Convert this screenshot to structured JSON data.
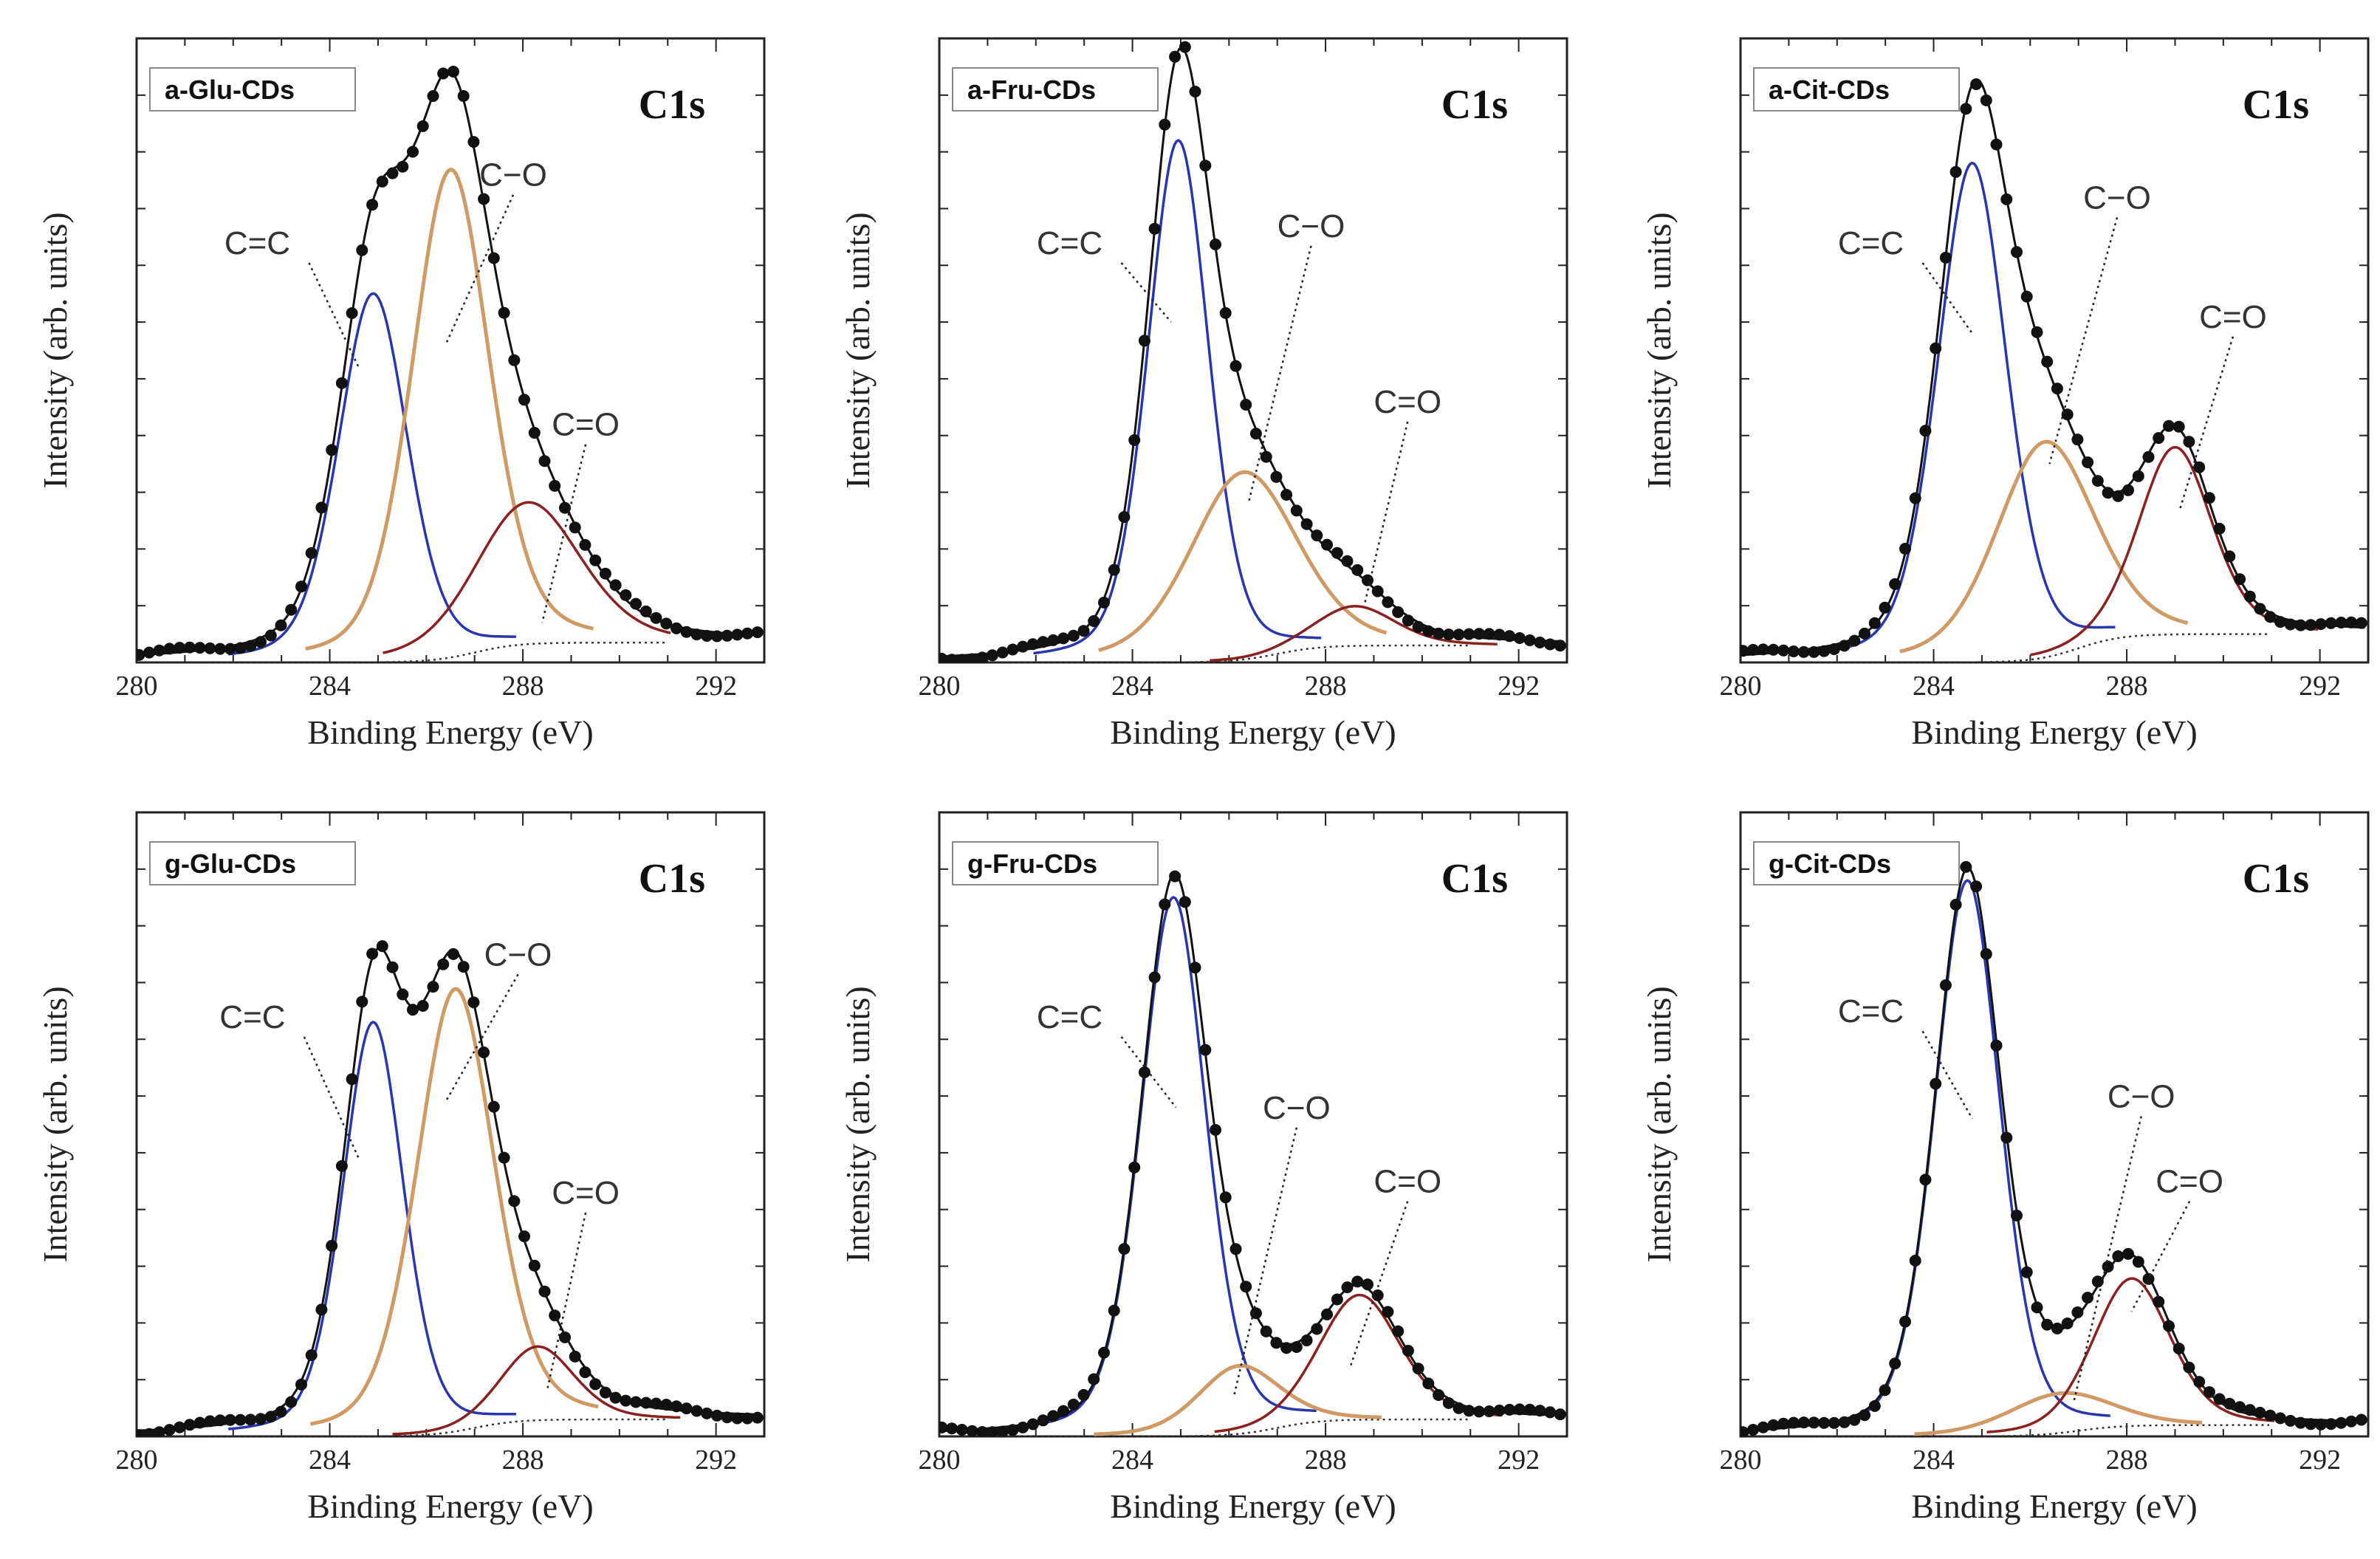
{
  "figure": {
    "xlabel": "Binding Energy (eV)",
    "ylabel": "Intensity (arb. units)"
  },
  "colors": {
    "c_eq_c": "#2b35b0",
    "c_o": "#d09a64",
    "c_eq_o": "#8b2020",
    "envelope": "#111111",
    "background": "#333333"
  },
  "chart_data": [
    {
      "type": "line",
      "sample": "a-Glu-CDs",
      "title": "C1s",
      "xlabel": "Binding Energy (eV)",
      "ylabel": "Intensity (arb. units)",
      "xlim": [
        280,
        293
      ],
      "xticks": [
        280,
        284,
        288,
        292
      ],
      "ylim": [
        0,
        1.1
      ],
      "components": [
        {
          "name": "C=C",
          "center": 284.9,
          "height": 0.65,
          "fwhm": 1.7,
          "label_pos": [
            282.5,
            0.72
          ],
          "pointer": [
            284.6,
            0.52
          ]
        },
        {
          "name": "C−O",
          "center": 286.5,
          "height": 0.86,
          "fwhm": 1.9,
          "label_pos": [
            287.8,
            0.84
          ],
          "pointer": [
            286.4,
            0.56
          ]
        },
        {
          "name": "C=O",
          "center": 288.1,
          "height": 0.25,
          "fwhm": 2.6,
          "label_pos": [
            289.3,
            0.4
          ],
          "pointer": [
            288.4,
            0.07
          ]
        }
      ],
      "baseline": [
        0.0,
        0.035
      ]
    },
    {
      "type": "line",
      "sample": "a-Fru-CDs",
      "title": "C1s",
      "xlabel": "Binding Energy (eV)",
      "ylabel": "Intensity (arb. units)",
      "xlim": [
        280,
        293
      ],
      "xticks": [
        280,
        284,
        288,
        292
      ],
      "ylim": [
        0,
        1.1
      ],
      "components": [
        {
          "name": "C=C",
          "center": 284.95,
          "height": 0.92,
          "fwhm": 1.5,
          "label_pos": [
            282.7,
            0.72
          ],
          "pointer": [
            284.8,
            0.6
          ]
        },
        {
          "name": "C−O",
          "center": 286.3,
          "height": 0.33,
          "fwhm": 2.6,
          "label_pos": [
            287.7,
            0.75
          ],
          "pointer": [
            286.4,
            0.28
          ]
        },
        {
          "name": "C=O",
          "center": 288.6,
          "height": 0.07,
          "fwhm": 2.0,
          "label_pos": [
            289.7,
            0.44
          ],
          "pointer": [
            288.8,
            0.1
          ]
        }
      ],
      "baseline": [
        0.0,
        0.03
      ]
    },
    {
      "type": "line",
      "sample": "a-Cit-CDs",
      "title": "C1s",
      "xlabel": "Binding Energy (eV)",
      "ylabel": "Intensity (arb. units)",
      "xlim": [
        280,
        293
      ],
      "xticks": [
        280,
        284,
        288,
        292
      ],
      "ylim": [
        0,
        1.1
      ],
      "components": [
        {
          "name": "C=C",
          "center": 284.8,
          "height": 0.88,
          "fwhm": 1.7,
          "label_pos": [
            282.7,
            0.72
          ],
          "pointer": [
            284.8,
            0.58
          ]
        },
        {
          "name": "C−O",
          "center": 286.3,
          "height": 0.38,
          "fwhm": 2.4,
          "label_pos": [
            287.8,
            0.8
          ],
          "pointer": [
            286.4,
            0.35
          ]
        },
        {
          "name": "C=O",
          "center": 289.0,
          "height": 0.33,
          "fwhm": 1.8,
          "label_pos": [
            290.2,
            0.59
          ],
          "pointer": [
            289.1,
            0.27
          ]
        }
      ],
      "baseline": [
        0.0,
        0.05
      ]
    },
    {
      "type": "line",
      "sample": "g-Glu-CDs",
      "title": "C1s",
      "xlabel": "Binding Energy (eV)",
      "ylabel": "Intensity (arb. units)",
      "xlim": [
        280,
        293
      ],
      "xticks": [
        280,
        284,
        288,
        292
      ],
      "ylim": [
        0,
        1.1
      ],
      "components": [
        {
          "name": "C=C",
          "center": 284.9,
          "height": 0.73,
          "fwhm": 1.5,
          "label_pos": [
            282.4,
            0.72
          ],
          "pointer": [
            284.6,
            0.49
          ]
        },
        {
          "name": "C−O",
          "center": 286.6,
          "height": 0.78,
          "fwhm": 1.9,
          "label_pos": [
            287.9,
            0.83
          ],
          "pointer": [
            286.4,
            0.59
          ]
        },
        {
          "name": "C=O",
          "center": 288.3,
          "height": 0.13,
          "fwhm": 1.8,
          "label_pos": [
            289.3,
            0.41
          ],
          "pointer": [
            288.5,
            0.08
          ]
        }
      ],
      "baseline": [
        0.0,
        0.03
      ]
    },
    {
      "type": "line",
      "sample": "g-Fru-CDs",
      "title": "C1s",
      "xlabel": "Binding Energy (eV)",
      "ylabel": "Intensity (arb. units)",
      "xlim": [
        280,
        293
      ],
      "xticks": [
        280,
        284,
        288,
        292
      ],
      "ylim": [
        0,
        1.1
      ],
      "components": [
        {
          "name": "C=C",
          "center": 284.85,
          "height": 0.95,
          "fwhm": 1.6,
          "label_pos": [
            282.7,
            0.72
          ],
          "pointer": [
            284.9,
            0.58
          ]
        },
        {
          "name": "C−O",
          "center": 286.2,
          "height": 0.12,
          "fwhm": 2.0,
          "label_pos": [
            287.4,
            0.56
          ],
          "pointer": [
            286.1,
            0.07
          ]
        },
        {
          "name": "C=O",
          "center": 288.7,
          "height": 0.22,
          "fwhm": 2.0,
          "label_pos": [
            289.7,
            0.43
          ],
          "pointer": [
            288.5,
            0.12
          ]
        }
      ],
      "baseline": [
        0.0,
        0.03
      ]
    },
    {
      "type": "line",
      "sample": "g-Cit-CDs",
      "title": "C1s",
      "xlabel": "Binding Energy (eV)",
      "ylabel": "Intensity (arb. units)",
      "xlim": [
        280,
        293
      ],
      "xticks": [
        280,
        284,
        288,
        292
      ],
      "ylim": [
        0,
        1.1
      ],
      "components": [
        {
          "name": "C=C",
          "center": 284.7,
          "height": 0.98,
          "fwhm": 1.6,
          "label_pos": [
            282.7,
            0.73
          ],
          "pointer": [
            284.8,
            0.56
          ]
        },
        {
          "name": "C−O",
          "center": 286.6,
          "height": 0.07,
          "fwhm": 2.5,
          "label_pos": [
            288.3,
            0.58
          ],
          "pointer": [
            286.9,
            0.06
          ]
        },
        {
          "name": "C=O",
          "center": 288.1,
          "height": 0.26,
          "fwhm": 1.9,
          "label_pos": [
            289.3,
            0.43
          ],
          "pointer": [
            288.1,
            0.22
          ]
        }
      ],
      "baseline": [
        0.0,
        0.02
      ]
    }
  ]
}
